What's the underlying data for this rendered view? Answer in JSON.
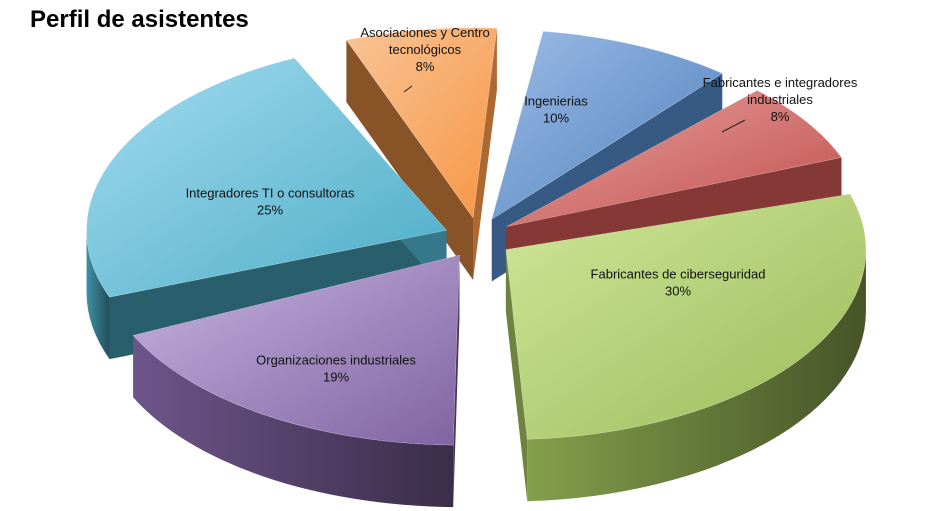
{
  "chart_data": {
    "type": "pie",
    "title": "Perfil de asistentes",
    "slices": [
      {
        "label_lines": [
          "Ingenierias"
        ],
        "value_label": "10%",
        "value": 10,
        "color": "#4f81bd",
        "color_light": "#9cbbe6"
      },
      {
        "label_lines": [
          "Fabricantes e integradores",
          "industriales"
        ],
        "value_label": "8%",
        "value": 8,
        "color": "#c0504d",
        "color_light": "#e8a19f"
      },
      {
        "label_lines": [
          "Fabricantes de ciberseguridad"
        ],
        "value_label": "30%",
        "value": 30,
        "color": "#9bbb59",
        "color_light": "#cfe69a"
      },
      {
        "label_lines": [
          "Organizaciones industriales"
        ],
        "value_label": "19%",
        "value": 19,
        "color": "#8064a2",
        "color_light": "#c7b4e0"
      },
      {
        "label_lines": [
          "Integradores TI o consultoras"
        ],
        "value_label": "25%",
        "value": 25,
        "color": "#4bacc6",
        "color_light": "#a4dcef"
      },
      {
        "label_lines": [
          "Asociaciones y Centro",
          "tecnológicos"
        ],
        "value_label": "8%",
        "value": 8,
        "color": "#f79646",
        "color_light": "#f8c495"
      }
    ],
    "legend": "none"
  }
}
